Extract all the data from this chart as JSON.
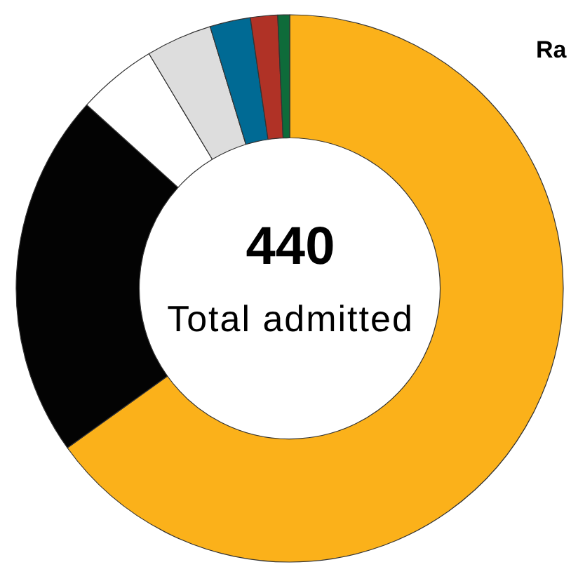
{
  "chart_data": {
    "type": "donut",
    "categories": [
      null,
      null,
      null,
      null,
      null,
      null,
      null
    ],
    "values": [
      65.1,
      21.6,
      4.7,
      3.9,
      2.4,
      1.6,
      0.7
    ],
    "colors": [
      "#fbb11a",
      "#030303",
      "#ffffff",
      "#dddddd",
      "#006a94",
      "#b03226",
      "#0e6b3a"
    ],
    "legend": false,
    "annotations": [
      "440",
      "Total admitted",
      "Ra"
    ]
  }
}
